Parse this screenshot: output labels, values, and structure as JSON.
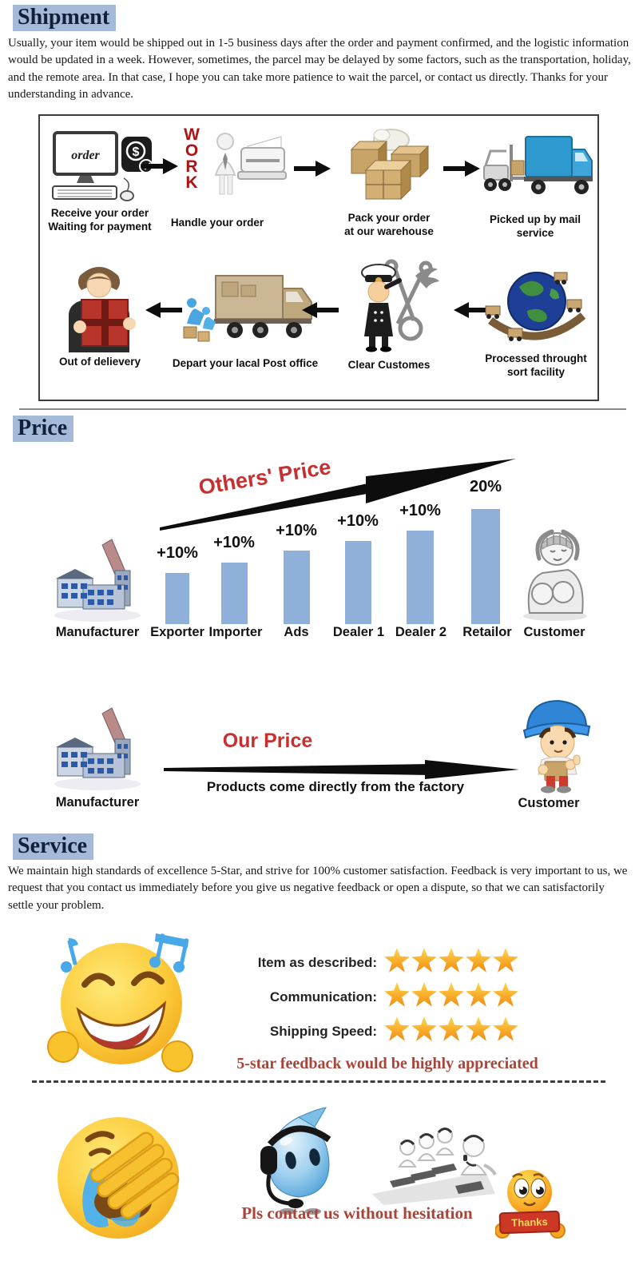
{
  "shipment": {
    "heading": "Shipment",
    "paragraph": "Usually, your item would be shipped out in 1-5 business days after the order and  payment confirmed, and the logistic information would be updated in a week. However, sometimes, the parcel may be delayed by some factors, such as the transportation, holiday, and the remote area. In that case, I hope you can take more patience to wait the parcel, or contact us directly. Thanks for your understanding in advance.",
    "order_screen_text": "order",
    "dollar_sign": "$",
    "work_text": "WORK",
    "steps_row1": [
      {
        "label": "Receive your order\nWaiting for payment"
      },
      {
        "label": "Handle your order"
      },
      {
        "label": "Pack your order\nat our warehouse"
      },
      {
        "label": "Picked up by mail service"
      }
    ],
    "steps_row2": [
      {
        "label": "Out of delievery"
      },
      {
        "label": "Depart your lacal Post office"
      },
      {
        "label": "Clear Customes"
      },
      {
        "label": "Processed throught\nsort facility"
      }
    ]
  },
  "price": {
    "heading": "Price",
    "others_price_label": "Others' Price",
    "our_price_label": "Our Price",
    "our_price_caption": "Products come directly from the factory",
    "manufacturer_label": "Manufacturer",
    "customer_label": "Customer"
  },
  "chart_data": {
    "type": "bar",
    "title": "Others' Price",
    "categories": [
      "Exporter",
      "Importer",
      "Ads",
      "Dealer 1",
      "Dealer 2",
      "Retailor"
    ],
    "values": [
      10,
      10,
      10,
      10,
      10,
      20
    ],
    "bar_labels": [
      "+10%",
      "+10%",
      "+10%",
      "+10%",
      "+10%",
      "20%"
    ],
    "bar_color": "#8fb0d9",
    "endpoints": [
      "Manufacturer",
      "Customer"
    ],
    "legend_position": "none",
    "grid": false
  },
  "service": {
    "heading": "Service",
    "paragraph": "We maintain high standards of excellence 5-Star, and strive for 100% customer satisfaction. Feedback is very important to us, we request that you contact us immediately before you give us negative feedback or open a dispute, so that we can satisfactorily settle your problem.",
    "ratings": [
      {
        "label": "Item as described:",
        "stars": 5
      },
      {
        "label": "Communication:",
        "stars": 5
      },
      {
        "label": "Shipping Speed:",
        "stars": 5
      }
    ],
    "feedback_note": "5-star feedback would be highly appreciated",
    "contact_note": "Pls contact us without hesitation",
    "thanks_label": "Thanks"
  },
  "colors": {
    "accent_red": "#c53030",
    "note_red": "#a94438",
    "bar_blue": "#8fb0d9",
    "heading_highlight": "#a4bad8"
  }
}
